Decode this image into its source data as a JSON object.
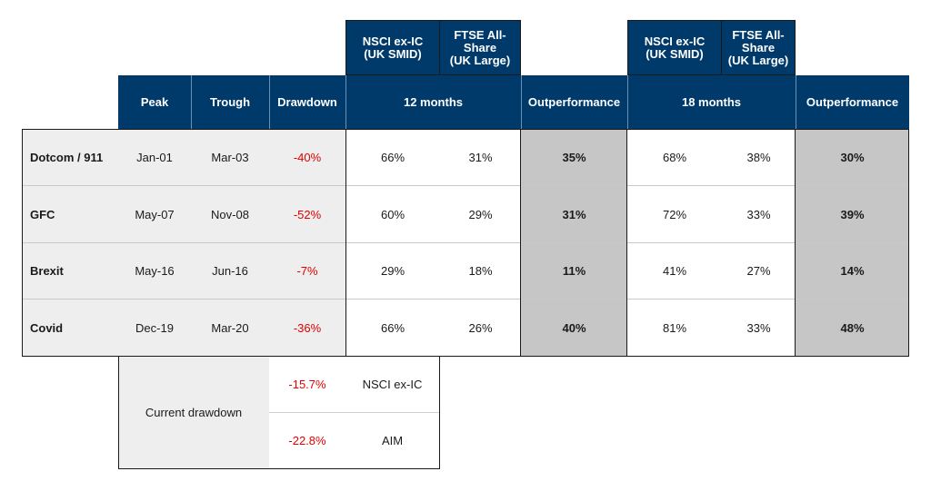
{
  "top_headers": {
    "a_nsci": "NSCI ex-IC\n(UK SMID)",
    "a_ftse": "FTSE All-\nShare\n(UK Large)",
    "b_nsci": "NSCI ex-IC\n(UK SMID)",
    "b_ftse": "FTSE All-\nShare\n(UK Large)"
  },
  "headers": {
    "peak": "Peak",
    "trough": "Trough",
    "drawdown": "Drawdown",
    "months12": "12 months",
    "outperf1": "Outperformance",
    "months18": "18 months",
    "outperf2": "Outperformance"
  },
  "rows": [
    {
      "event": "Dotcom / 911",
      "peak": "Jan-01",
      "trough": "Mar-03",
      "drawdown": "-40%",
      "nsci12": "66%",
      "ftse12": "31%",
      "out12": "35%",
      "nsci18": "68%",
      "ftse18": "38%",
      "out18": "30%"
    },
    {
      "event": "GFC",
      "peak": "May-07",
      "trough": "Nov-08",
      "drawdown": "-52%",
      "nsci12": "60%",
      "ftse12": "29%",
      "out12": "31%",
      "nsci18": "72%",
      "ftse18": "33%",
      "out18": "39%"
    },
    {
      "event": "Brexit",
      "peak": "May-16",
      "trough": "Jun-16",
      "drawdown": "-7%",
      "nsci12": "29%",
      "ftse12": "18%",
      "out12": "11%",
      "nsci18": "41%",
      "ftse18": "27%",
      "out18": "14%"
    },
    {
      "event": "Covid",
      "peak": "Dec-19",
      "trough": "Mar-20",
      "drawdown": "-36%",
      "nsci12": "66%",
      "ftse12": "26%",
      "out12": "40%",
      "nsci18": "81%",
      "ftse18": "33%",
      "out18": "48%"
    }
  ],
  "current": {
    "label": "Current drawdown",
    "rows": [
      {
        "value": "-15.7%",
        "index": "NSCI ex-IC"
      },
      {
        "value": "-22.8%",
        "index": "AIM"
      }
    ]
  },
  "colors": {
    "header_navy": "#003a6b",
    "negative_red": "#e00000",
    "light_grey": "#eeeeee",
    "outperformance_grey": "#c6c6c6"
  }
}
